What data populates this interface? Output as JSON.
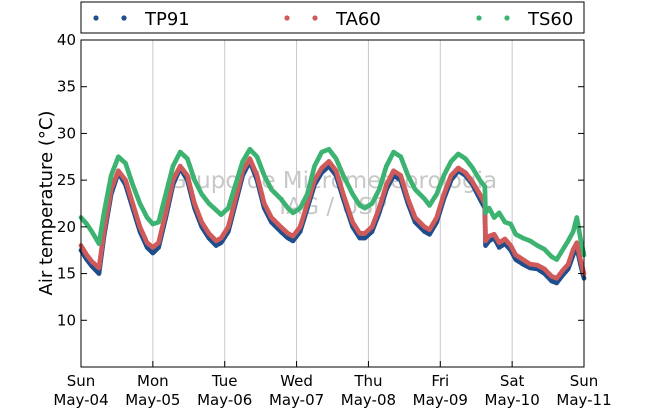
{
  "chart_data": {
    "type": "scatter",
    "ylabel": "Air temperature (°C)",
    "ylim": [
      5,
      40
    ],
    "yticks": [
      10,
      15,
      20,
      25,
      30,
      35,
      40
    ],
    "xlim": [
      0,
      7
    ],
    "xticks": [
      {
        "x": 0,
        "day": "Sun",
        "date": "May-04"
      },
      {
        "x": 1,
        "day": "Mon",
        "date": "May-05"
      },
      {
        "x": 2,
        "day": "Tue",
        "date": "May-06"
      },
      {
        "x": 3,
        "day": "Wed",
        "date": "May-07"
      },
      {
        "x": 4,
        "day": "Thu",
        "date": "May-08"
      },
      {
        "x": 5,
        "day": "Fri",
        "date": "May-09"
      },
      {
        "x": 6,
        "day": "Sat",
        "date": "May-10"
      },
      {
        "x": 7,
        "day": "Sun",
        "date": "May-11"
      }
    ],
    "grid": "vertical",
    "legend": "top, above plot",
    "watermark": [
      "Grupo de Micrometeorologia",
      "IAG / USP"
    ],
    "series": [
      {
        "name": "TP91",
        "color": "#1f4e8c",
        "points": [
          [
            0,
            17.5
          ],
          [
            0.08,
            16.5
          ],
          [
            0.15,
            15.8
          ],
          [
            0.25,
            15.0
          ],
          [
            0.32,
            19.0
          ],
          [
            0.42,
            23.5
          ],
          [
            0.52,
            25.8
          ],
          [
            0.62,
            24.5
          ],
          [
            0.72,
            22.0
          ],
          [
            0.82,
            19.5
          ],
          [
            0.92,
            17.8
          ],
          [
            1.0,
            17.2
          ],
          [
            1.08,
            17.8
          ],
          [
            1.18,
            21.0
          ],
          [
            1.28,
            24.5
          ],
          [
            1.38,
            26.3
          ],
          [
            1.48,
            25.0
          ],
          [
            1.58,
            22.0
          ],
          [
            1.68,
            20.0
          ],
          [
            1.78,
            18.8
          ],
          [
            1.88,
            18.0
          ],
          [
            1.95,
            18.3
          ],
          [
            2.05,
            19.5
          ],
          [
            2.15,
            22.5
          ],
          [
            2.25,
            25.5
          ],
          [
            2.35,
            27.0
          ],
          [
            2.45,
            25.0
          ],
          [
            2.55,
            22.0
          ],
          [
            2.65,
            20.5
          ],
          [
            2.78,
            19.5
          ],
          [
            2.88,
            18.8
          ],
          [
            2.95,
            18.5
          ],
          [
            3.05,
            19.5
          ],
          [
            3.15,
            22.0
          ],
          [
            3.25,
            24.5
          ],
          [
            3.35,
            25.8
          ],
          [
            3.45,
            26.5
          ],
          [
            3.55,
            25.5
          ],
          [
            3.65,
            23.0
          ],
          [
            3.78,
            20.0
          ],
          [
            3.88,
            18.8
          ],
          [
            3.95,
            18.8
          ],
          [
            4.05,
            19.5
          ],
          [
            4.15,
            21.5
          ],
          [
            4.25,
            24.0
          ],
          [
            4.35,
            25.5
          ],
          [
            4.45,
            25.0
          ],
          [
            4.55,
            22.5
          ],
          [
            4.65,
            20.5
          ],
          [
            4.78,
            19.5
          ],
          [
            4.85,
            19.2
          ],
          [
            4.95,
            20.5
          ],
          [
            5.05,
            23.0
          ],
          [
            5.15,
            25.0
          ],
          [
            5.25,
            26.0
          ],
          [
            5.35,
            25.5
          ],
          [
            5.45,
            24.5
          ],
          [
            5.55,
            23.0
          ],
          [
            5.62,
            22.0
          ],
          [
            5.63,
            18.0
          ],
          [
            5.68,
            18.5
          ],
          [
            5.75,
            18.8
          ],
          [
            5.82,
            17.8
          ],
          [
            5.9,
            18.2
          ],
          [
            5.98,
            17.5
          ],
          [
            6.05,
            16.5
          ],
          [
            6.15,
            16.0
          ],
          [
            6.25,
            15.6
          ],
          [
            6.35,
            15.5
          ],
          [
            6.45,
            15.0
          ],
          [
            6.55,
            14.2
          ],
          [
            6.62,
            14.0
          ],
          [
            6.7,
            14.8
          ],
          [
            6.78,
            15.5
          ],
          [
            6.85,
            17.0
          ],
          [
            6.9,
            17.8
          ],
          [
            6.95,
            16.0
          ],
          [
            7.0,
            14.5
          ]
        ]
      },
      {
        "name": "TA60",
        "color": "#d05a5a",
        "points": [
          [
            0,
            18.0
          ],
          [
            0.08,
            17.0
          ],
          [
            0.15,
            16.3
          ],
          [
            0.25,
            15.6
          ],
          [
            0.32,
            19.5
          ],
          [
            0.42,
            24.0
          ],
          [
            0.52,
            26.0
          ],
          [
            0.62,
            25.0
          ],
          [
            0.72,
            22.5
          ],
          [
            0.82,
            20.0
          ],
          [
            0.92,
            18.3
          ],
          [
            1.0,
            17.8
          ],
          [
            1.08,
            18.3
          ],
          [
            1.18,
            21.5
          ],
          [
            1.28,
            25.0
          ],
          [
            1.38,
            26.5
          ],
          [
            1.48,
            25.5
          ],
          [
            1.58,
            22.5
          ],
          [
            1.68,
            20.5
          ],
          [
            1.78,
            19.3
          ],
          [
            1.88,
            18.5
          ],
          [
            1.95,
            18.8
          ],
          [
            2.05,
            20.0
          ],
          [
            2.15,
            23.0
          ],
          [
            2.25,
            26.0
          ],
          [
            2.35,
            27.3
          ],
          [
            2.45,
            25.5
          ],
          [
            2.55,
            22.5
          ],
          [
            2.65,
            21.0
          ],
          [
            2.78,
            20.0
          ],
          [
            2.88,
            19.3
          ],
          [
            2.95,
            19.0
          ],
          [
            3.05,
            20.0
          ],
          [
            3.15,
            22.5
          ],
          [
            3.25,
            25.0
          ],
          [
            3.35,
            26.3
          ],
          [
            3.45,
            27.0
          ],
          [
            3.55,
            26.0
          ],
          [
            3.65,
            23.5
          ],
          [
            3.78,
            20.5
          ],
          [
            3.88,
            19.3
          ],
          [
            3.95,
            19.3
          ],
          [
            4.05,
            20.0
          ],
          [
            4.15,
            22.0
          ],
          [
            4.25,
            24.5
          ],
          [
            4.35,
            26.0
          ],
          [
            4.45,
            25.5
          ],
          [
            4.55,
            23.0
          ],
          [
            4.65,
            21.0
          ],
          [
            4.78,
            20.0
          ],
          [
            4.85,
            19.7
          ],
          [
            4.95,
            21.0
          ],
          [
            5.05,
            23.5
          ],
          [
            5.15,
            25.5
          ],
          [
            5.25,
            26.3
          ],
          [
            5.35,
            25.8
          ],
          [
            5.45,
            24.8
          ],
          [
            5.55,
            23.5
          ],
          [
            5.62,
            22.5
          ],
          [
            5.63,
            18.5
          ],
          [
            5.68,
            19.0
          ],
          [
            5.75,
            19.2
          ],
          [
            5.82,
            18.3
          ],
          [
            5.9,
            18.7
          ],
          [
            5.98,
            18.0
          ],
          [
            6.05,
            17.0
          ],
          [
            6.15,
            16.5
          ],
          [
            6.25,
            16.0
          ],
          [
            6.35,
            15.9
          ],
          [
            6.45,
            15.5
          ],
          [
            6.55,
            14.7
          ],
          [
            6.62,
            14.5
          ],
          [
            6.7,
            15.3
          ],
          [
            6.78,
            16.0
          ],
          [
            6.85,
            17.6
          ],
          [
            6.9,
            18.3
          ],
          [
            6.95,
            16.5
          ],
          [
            7.0,
            15.0
          ]
        ]
      },
      {
        "name": "TS60",
        "color": "#3cb371",
        "points": [
          [
            0,
            21.0
          ],
          [
            0.08,
            20.3
          ],
          [
            0.15,
            19.5
          ],
          [
            0.25,
            18.2
          ],
          [
            0.32,
            21.5
          ],
          [
            0.42,
            25.5
          ],
          [
            0.52,
            27.5
          ],
          [
            0.62,
            26.8
          ],
          [
            0.72,
            24.5
          ],
          [
            0.82,
            22.5
          ],
          [
            0.92,
            21.0
          ],
          [
            1.0,
            20.3
          ],
          [
            1.08,
            20.5
          ],
          [
            1.18,
            23.5
          ],
          [
            1.28,
            26.5
          ],
          [
            1.38,
            28.0
          ],
          [
            1.48,
            27.3
          ],
          [
            1.58,
            25.0
          ],
          [
            1.68,
            23.5
          ],
          [
            1.78,
            22.5
          ],
          [
            1.88,
            21.8
          ],
          [
            1.95,
            21.3
          ],
          [
            2.05,
            22.0
          ],
          [
            2.15,
            24.5
          ],
          [
            2.25,
            27.0
          ],
          [
            2.35,
            28.3
          ],
          [
            2.45,
            27.5
          ],
          [
            2.55,
            25.5
          ],
          [
            2.65,
            24.0
          ],
          [
            2.78,
            23.0
          ],
          [
            2.88,
            22.0
          ],
          [
            2.95,
            21.5
          ],
          [
            3.05,
            22.0
          ],
          [
            3.15,
            23.5
          ],
          [
            3.25,
            26.5
          ],
          [
            3.35,
            28.0
          ],
          [
            3.45,
            28.3
          ],
          [
            3.55,
            27.3
          ],
          [
            3.65,
            25.5
          ],
          [
            3.78,
            23.5
          ],
          [
            3.88,
            22.3
          ],
          [
            3.95,
            22.0
          ],
          [
            4.05,
            22.5
          ],
          [
            4.15,
            24.0
          ],
          [
            4.25,
            26.5
          ],
          [
            4.35,
            28.0
          ],
          [
            4.45,
            27.5
          ],
          [
            4.55,
            25.5
          ],
          [
            4.65,
            24.0
          ],
          [
            4.78,
            23.0
          ],
          [
            4.85,
            22.3
          ],
          [
            4.95,
            23.5
          ],
          [
            5.05,
            25.5
          ],
          [
            5.15,
            27.0
          ],
          [
            5.25,
            27.8
          ],
          [
            5.35,
            27.3
          ],
          [
            5.45,
            26.3
          ],
          [
            5.55,
            25.0
          ],
          [
            5.62,
            24.3
          ],
          [
            5.63,
            21.5
          ],
          [
            5.68,
            22.0
          ],
          [
            5.75,
            21.0
          ],
          [
            5.82,
            21.5
          ],
          [
            5.9,
            20.5
          ],
          [
            5.98,
            20.3
          ],
          [
            6.05,
            19.2
          ],
          [
            6.15,
            18.8
          ],
          [
            6.25,
            18.5
          ],
          [
            6.35,
            18.0
          ],
          [
            6.45,
            17.6
          ],
          [
            6.55,
            16.8
          ],
          [
            6.62,
            16.5
          ],
          [
            6.7,
            17.5
          ],
          [
            6.78,
            18.5
          ],
          [
            6.85,
            19.5
          ],
          [
            6.9,
            21.0
          ],
          [
            6.95,
            18.8
          ],
          [
            7.0,
            17.0
          ]
        ]
      }
    ]
  }
}
